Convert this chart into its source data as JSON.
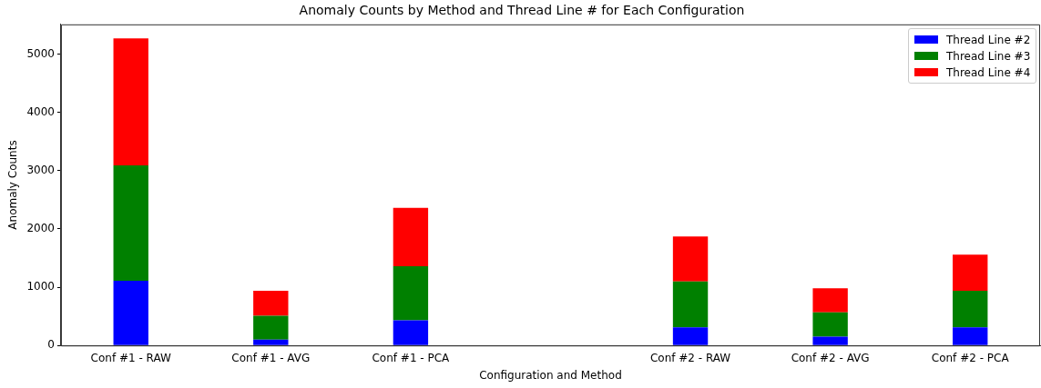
{
  "chart_data": {
    "type": "bar",
    "title": "Anomaly Counts by Method and Thread Line # for Each Configuration",
    "xlabel": "Configuration and Method",
    "ylabel": "Anomaly Counts",
    "categories": [
      "Conf #1 - RAW",
      "Conf #1 - AVG",
      "Conf #1 - PCA",
      null,
      "Conf #2 - RAW",
      "Conf #2 - AVG",
      "Conf #2 - PCA"
    ],
    "series": [
      {
        "name": "Thread Line #2",
        "color": "#0000ff",
        "values": [
          1110,
          100,
          430,
          null,
          310,
          150,
          310
        ]
      },
      {
        "name": "Thread Line #3",
        "color": "#008000",
        "values": [
          1980,
          410,
          930,
          null,
          790,
          420,
          630
        ]
      },
      {
        "name": "Thread Line #4",
        "color": "#ff0000",
        "values": [
          2180,
          430,
          1000,
          null,
          770,
          410,
          620
        ]
      }
    ],
    "stacked": true,
    "ylim": [
      0,
      5510
    ],
    "yticks": [
      0,
      1000,
      2000,
      3000,
      4000,
      5000
    ],
    "grid": false,
    "legend": "top right"
  }
}
